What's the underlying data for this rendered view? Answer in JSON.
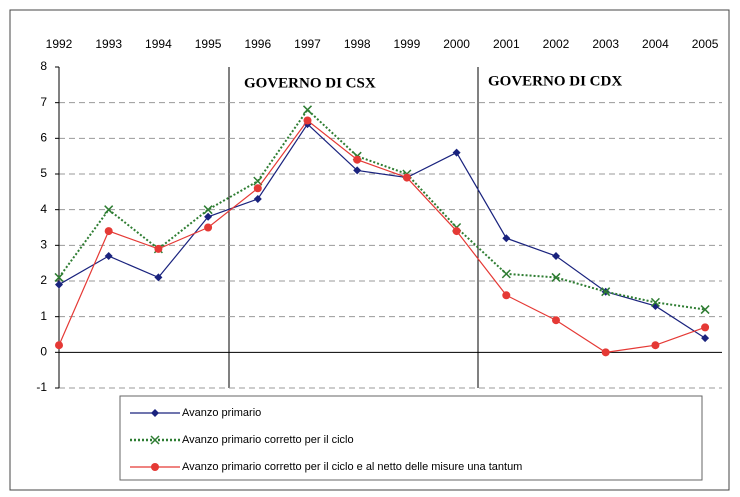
{
  "chart_data": {
    "type": "line",
    "categories": [
      "1992",
      "1993",
      "1994",
      "1995",
      "1996",
      "1997",
      "1998",
      "1999",
      "2000",
      "2001",
      "2002",
      "2003",
      "2004",
      "2005"
    ],
    "series": [
      {
        "name": "Avanzo primario",
        "color": "#1a237e",
        "marker": "diamond",
        "dash": "solid",
        "values": [
          1.9,
          2.7,
          2.1,
          3.8,
          4.3,
          6.4,
          5.1,
          4.9,
          5.6,
          3.2,
          2.7,
          1.7,
          1.3,
          0.4
        ]
      },
      {
        "name": "Avanzo primario corretto per il ciclo",
        "color": "#2e7d32",
        "marker": "x",
        "dash": "dotted",
        "values": [
          2.1,
          4.0,
          2.9,
          4.0,
          4.8,
          6.8,
          5.5,
          5.0,
          3.5,
          2.2,
          2.1,
          1.7,
          1.4,
          1.2
        ]
      },
      {
        "name": "Avanzo primario corretto per il ciclo e al netto delle misure una tantum",
        "color": "#e53935",
        "marker": "circle",
        "dash": "solid",
        "values": [
          0.2,
          3.4,
          2.9,
          3.5,
          4.6,
          6.5,
          5.4,
          4.9,
          3.4,
          1.6,
          0.9,
          0.0,
          0.2,
          0.7
        ]
      }
    ],
    "annotations": [
      "GOVERNO DI CSX",
      "GOVERNO DI CDX"
    ],
    "ylim": [
      -1,
      8
    ],
    "yticks": [
      -1,
      0,
      1,
      2,
      3,
      4,
      5,
      6,
      7,
      8
    ],
    "grid": true
  }
}
